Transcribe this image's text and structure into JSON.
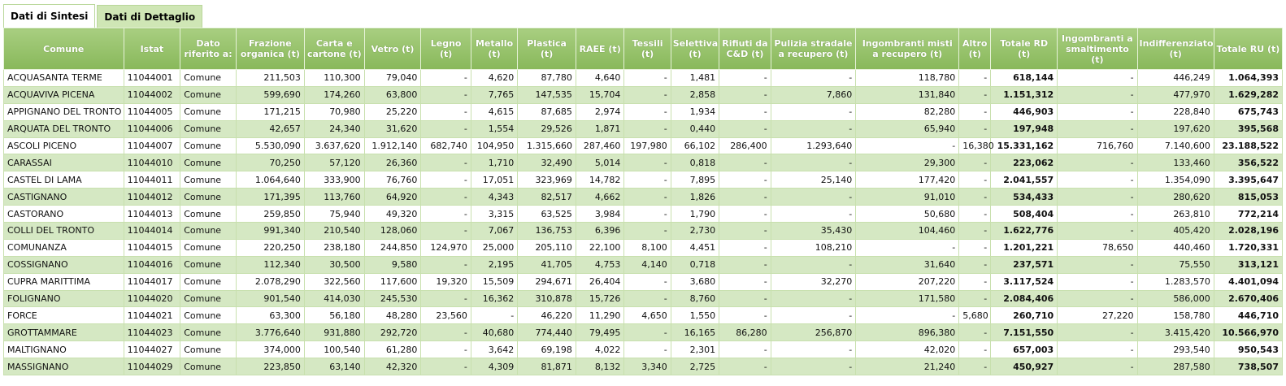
{
  "tabs": [
    {
      "label": "Dati di Sintesi",
      "active": true
    },
    {
      "label": "Dati di Dettaglio",
      "active": false
    }
  ],
  "columns": [
    "Comune",
    "Istat",
    "Dato riferito a:",
    "Frazione organica (t)",
    "Carta e cartone (t)",
    "Vetro (t)",
    "Legno (t)",
    "Metallo (t)",
    "Plastica (t)",
    "RAEE (t)",
    "Tessili (t)",
    "Selettiva (t)",
    "Rifiuti da C&D (t)",
    "Pulizia stradale a recupero (t)",
    "Ingombranti misti a recupero (t)",
    "Altro (t)",
    "Totale RD (t)",
    "Ingombranti a smaltimento (t)",
    "Indifferenziato (t)",
    "Totale RU (t)"
  ],
  "rows": [
    [
      "ACQUASANTA TERME",
      "11044001",
      "Comune",
      "211,503",
      "110,300",
      "79,040",
      "-",
      "4,620",
      "87,780",
      "4,640",
      "-",
      "1,481",
      "-",
      "-",
      "118,780",
      "-",
      "618,144",
      "-",
      "446,249",
      "1.064,393"
    ],
    [
      "ACQUAVIVA PICENA",
      "11044002",
      "Comune",
      "599,690",
      "174,260",
      "63,800",
      "-",
      "7,765",
      "147,535",
      "15,704",
      "-",
      "2,858",
      "-",
      "7,860",
      "131,840",
      "-",
      "1.151,312",
      "-",
      "477,970",
      "1.629,282"
    ],
    [
      "APPIGNANO DEL TRONTO",
      "11044005",
      "Comune",
      "171,215",
      "70,980",
      "25,220",
      "-",
      "4,615",
      "87,685",
      "2,974",
      "-",
      "1,934",
      "-",
      "-",
      "82,280",
      "-",
      "446,903",
      "-",
      "228,840",
      "675,743"
    ],
    [
      "ARQUATA DEL TRONTO",
      "11044006",
      "Comune",
      "42,657",
      "24,340",
      "31,620",
      "-",
      "1,554",
      "29,526",
      "1,871",
      "-",
      "0,440",
      "-",
      "-",
      "65,940",
      "-",
      "197,948",
      "-",
      "197,620",
      "395,568"
    ],
    [
      "ASCOLI PICENO",
      "11044007",
      "Comune",
      "5.530,090",
      "3.637,620",
      "1.912,140",
      "682,740",
      "104,950",
      "1.315,660",
      "287,460",
      "197,980",
      "66,102",
      "286,400",
      "1.293,640",
      "-",
      "16,380",
      "15.331,162",
      "716,760",
      "7.140,600",
      "23.188,522"
    ],
    [
      "CARASSAI",
      "11044010",
      "Comune",
      "70,250",
      "57,120",
      "26,360",
      "-",
      "1,710",
      "32,490",
      "5,014",
      "-",
      "0,818",
      "-",
      "-",
      "29,300",
      "-",
      "223,062",
      "-",
      "133,460",
      "356,522"
    ],
    [
      "CASTEL DI LAMA",
      "11044011",
      "Comune",
      "1.064,640",
      "333,900",
      "76,760",
      "-",
      "17,051",
      "323,969",
      "14,782",
      "-",
      "7,895",
      "-",
      "25,140",
      "177,420",
      "-",
      "2.041,557",
      "-",
      "1.354,090",
      "3.395,647"
    ],
    [
      "CASTIGNANO",
      "11044012",
      "Comune",
      "171,395",
      "113,760",
      "64,920",
      "-",
      "4,343",
      "82,517",
      "4,662",
      "-",
      "1,826",
      "-",
      "-",
      "91,010",
      "-",
      "534,433",
      "-",
      "280,620",
      "815,053"
    ],
    [
      "CASTORANO",
      "11044013",
      "Comune",
      "259,850",
      "75,940",
      "49,320",
      "-",
      "3,315",
      "63,525",
      "3,984",
      "-",
      "1,790",
      "-",
      "-",
      "50,680",
      "-",
      "508,404",
      "-",
      "263,810",
      "772,214"
    ],
    [
      "COLLI DEL TRONTO",
      "11044014",
      "Comune",
      "991,340",
      "210,540",
      "128,060",
      "-",
      "7,067",
      "136,753",
      "6,396",
      "-",
      "2,730",
      "-",
      "35,430",
      "104,460",
      "-",
      "1.622,776",
      "-",
      "405,420",
      "2.028,196"
    ],
    [
      "COMUNANZA",
      "11044015",
      "Comune",
      "220,250",
      "238,180",
      "244,850",
      "124,970",
      "25,000",
      "205,110",
      "22,100",
      "8,100",
      "4,451",
      "-",
      "108,210",
      "-",
      "-",
      "1.201,221",
      "78,650",
      "440,460",
      "1.720,331"
    ],
    [
      "COSSIGNANO",
      "11044016",
      "Comune",
      "112,340",
      "30,500",
      "9,580",
      "-",
      "2,195",
      "41,705",
      "4,753",
      "4,140",
      "0,718",
      "-",
      "-",
      "31,640",
      "-",
      "237,571",
      "-",
      "75,550",
      "313,121"
    ],
    [
      "CUPRA MARITTIMA",
      "11044017",
      "Comune",
      "2.078,290",
      "322,560",
      "117,600",
      "19,320",
      "15,509",
      "294,671",
      "26,404",
      "-",
      "3,680",
      "-",
      "32,270",
      "207,220",
      "-",
      "3.117,524",
      "-",
      "1.283,570",
      "4.401,094"
    ],
    [
      "FOLIGNANO",
      "11044020",
      "Comune",
      "901,540",
      "414,030",
      "245,530",
      "-",
      "16,362",
      "310,878",
      "15,726",
      "-",
      "8,760",
      "-",
      "-",
      "171,580",
      "-",
      "2.084,406",
      "-",
      "586,000",
      "2.670,406"
    ],
    [
      "FORCE",
      "11044021",
      "Comune",
      "63,300",
      "56,180",
      "48,280",
      "23,560",
      "-",
      "46,220",
      "11,290",
      "4,650",
      "1,550",
      "-",
      "-",
      "-",
      "5,680",
      "260,710",
      "27,220",
      "158,780",
      "446,710"
    ],
    [
      "GROTTAMMARE",
      "11044023",
      "Comune",
      "3.776,640",
      "931,880",
      "292,720",
      "-",
      "40,680",
      "774,440",
      "79,495",
      "-",
      "16,165",
      "86,280",
      "256,870",
      "896,380",
      "-",
      "7.151,550",
      "-",
      "3.415,420",
      "10.566,970"
    ],
    [
      "MALTIGNANO",
      "11044027",
      "Comune",
      "374,000",
      "100,540",
      "61,280",
      "-",
      "3,642",
      "69,198",
      "4,022",
      "-",
      "2,301",
      "-",
      "-",
      "42,020",
      "-",
      "657,003",
      "-",
      "293,540",
      "950,543"
    ],
    [
      "MASSIGNANO",
      "11044029",
      "Comune",
      "223,850",
      "63,140",
      "42,320",
      "-",
      "4,309",
      "81,871",
      "8,132",
      "3,340",
      "2,725",
      "-",
      "-",
      "21,240",
      "-",
      "450,927",
      "-",
      "287,580",
      "738,507"
    ]
  ]
}
